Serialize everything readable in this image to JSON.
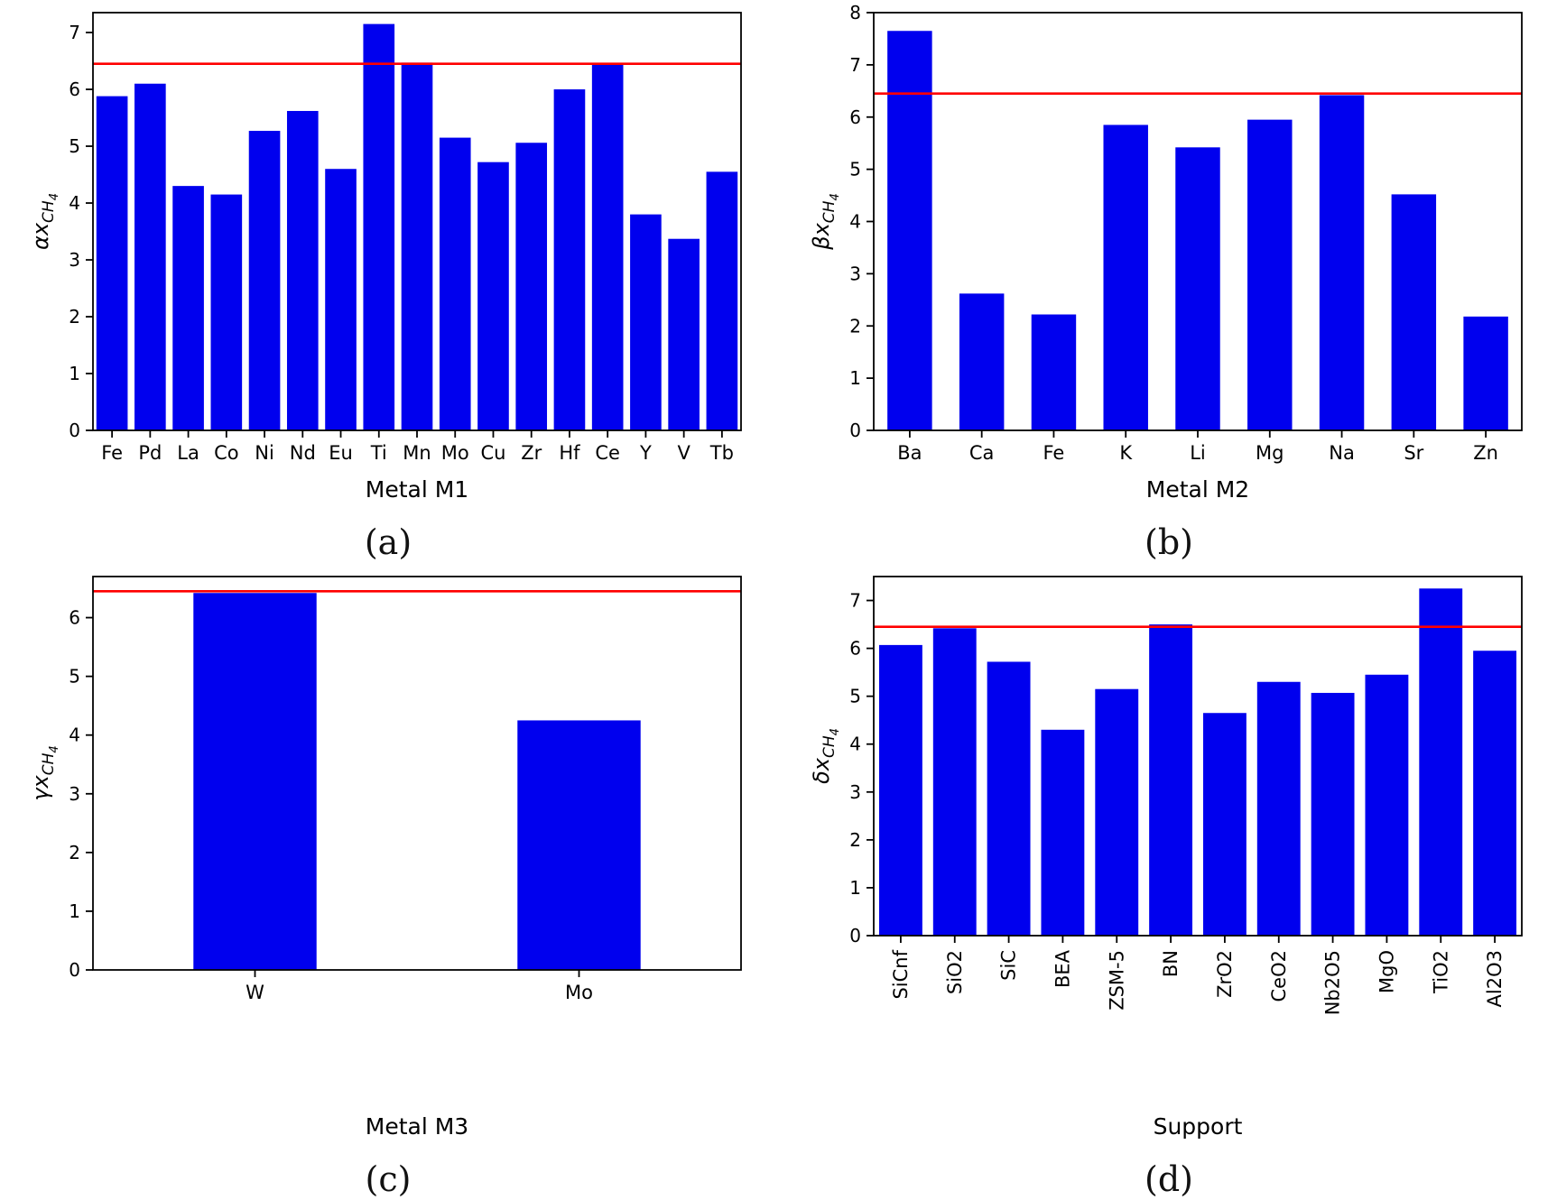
{
  "figure": {
    "background": "#ffffff",
    "bar_color": "#0000ee",
    "ref_line_color": "#ff0000",
    "axis_color": "#000000"
  },
  "captions": {
    "a": "(a)",
    "b": "(b)",
    "c": "(c)",
    "d": "(d)"
  },
  "chart_data": [
    {
      "id": "a",
      "type": "bar",
      "title": "",
      "xlabel": "Metal M1",
      "ylabel": "αx_CH4",
      "categories": [
        "Fe",
        "Pd",
        "La",
        "Co",
        "Ni",
        "Nd",
        "Eu",
        "Ti",
        "Mn",
        "Mo",
        "Cu",
        "Zr",
        "Hf",
        "Ce",
        "Y",
        "V",
        "Tb"
      ],
      "values": [
        5.88,
        6.1,
        4.3,
        4.15,
        5.27,
        5.62,
        4.6,
        7.15,
        6.47,
        5.15,
        4.72,
        5.06,
        6.0,
        6.45,
        3.8,
        3.37,
        4.55
      ],
      "ylim": [
        0,
        7.35
      ],
      "yticks": [
        0,
        1,
        2,
        3,
        4,
        5,
        6,
        7
      ],
      "ref_line": 6.45,
      "bar_width": 0.82,
      "xtick_rotation": 0,
      "grid": false,
      "legend": null
    },
    {
      "id": "b",
      "type": "bar",
      "title": "",
      "xlabel": "Metal M2",
      "ylabel": "βx_CH4",
      "categories": [
        "Ba",
        "Ca",
        "Fe",
        "K",
        "Li",
        "Mg",
        "Na",
        "Sr",
        "Zn"
      ],
      "values": [
        7.65,
        2.62,
        2.22,
        5.85,
        5.42,
        5.95,
        6.42,
        4.52,
        2.18
      ],
      "ylim": [
        0,
        8
      ],
      "yticks": [
        0,
        1,
        2,
        3,
        4,
        5,
        6,
        7,
        8
      ],
      "ref_line": 6.45,
      "bar_width": 0.62,
      "xtick_rotation": 0,
      "grid": false,
      "legend": null
    },
    {
      "id": "c",
      "type": "bar",
      "title": "",
      "xlabel": "Metal M3",
      "ylabel": "γx_CH4",
      "categories": [
        "W",
        "Mo"
      ],
      "values": [
        6.42,
        4.25
      ],
      "ylim": [
        0,
        6.7
      ],
      "yticks": [
        0,
        1,
        2,
        3,
        4,
        5,
        6
      ],
      "ref_line": 6.45,
      "bar_width": 0.38,
      "xtick_rotation": 0,
      "grid": false,
      "legend": null
    },
    {
      "id": "d",
      "type": "bar",
      "title": "",
      "xlabel": "Support",
      "ylabel": "δx_CH4",
      "categories": [
        "SiCnf",
        "SiO2",
        "SiC",
        "BEA",
        "ZSM-5",
        "BN",
        "ZrO2",
        "CeO2",
        "Nb2O5",
        "MgO",
        "TiO2",
        "Al2O3"
      ],
      "values": [
        6.07,
        6.42,
        5.72,
        4.3,
        5.15,
        6.5,
        4.65,
        5.3,
        5.07,
        5.45,
        7.25,
        5.95
      ],
      "ylim": [
        0,
        7.5
      ],
      "yticks": [
        0,
        1,
        2,
        3,
        4,
        5,
        6,
        7
      ],
      "ref_line": 6.45,
      "bar_width": 0.8,
      "xtick_rotation": 90,
      "grid": false,
      "legend": null
    }
  ]
}
